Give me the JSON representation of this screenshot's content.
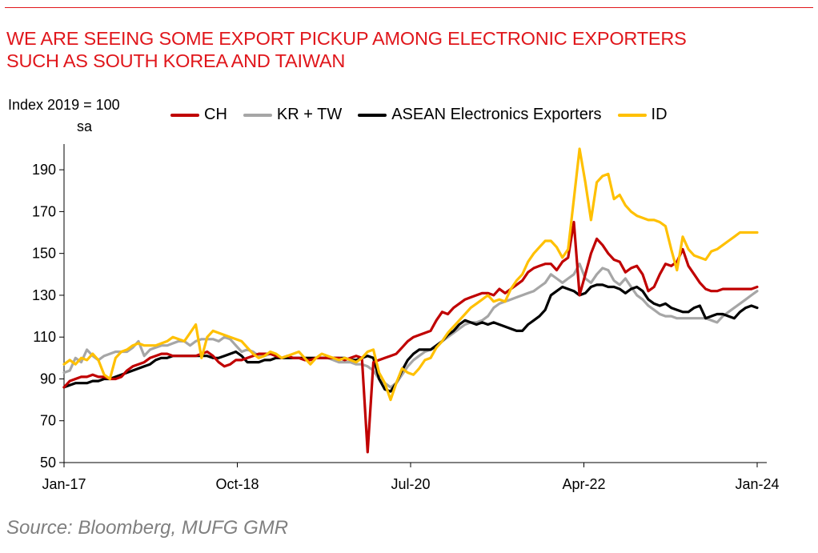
{
  "title_lines": [
    "WE ARE SEEING SOME EXPORT PICKUP AMONG ELECTRONIC EXPORTERS",
    "SUCH AS SOUTH KOREA AND TAIWAN"
  ],
  "source": "Source: Bloomberg, MUFG GMR",
  "chart_data": {
    "type": "line",
    "title": "WE ARE SEEING SOME EXPORT PICKUP AMONG ELECTRONIC EXPORTERS SUCH AS SOUTH KOREA AND TAIWAN",
    "ylabel_lines": [
      "Index 2019 = 100",
      "sa"
    ],
    "xlabel": "",
    "x_start": "Jan-17",
    "x_end": "Jan-24",
    "x_tick_labels": [
      "Jan-17",
      "Oct-18",
      "Jul-20",
      "Apr-22",
      "Jan-24"
    ],
    "y_ticks": [
      50,
      70,
      90,
      110,
      130,
      150,
      170,
      190
    ],
    "ylim": [
      50,
      200
    ],
    "grid": false,
    "legend_position": "top",
    "series": [
      {
        "name": "CH",
        "color": "#c00000",
        "values": [
          86,
          89,
          90,
          91,
          91,
          92,
          91,
          91,
          90,
          90,
          91,
          94,
          96,
          97,
          98,
          100,
          101,
          102,
          102,
          101,
          101,
          101,
          101,
          101,
          102,
          103,
          101,
          98,
          96,
          97,
          99,
          99,
          100,
          101,
          102,
          102,
          102,
          101,
          100,
          101,
          100,
          100,
          99,
          99,
          100,
          100,
          100,
          100,
          100,
          99,
          100,
          101,
          100,
          55,
          98,
          99,
          100,
          101,
          102,
          105,
          108,
          110,
          111,
          112,
          113,
          118,
          122,
          121,
          124,
          126,
          128,
          129,
          130,
          131,
          131,
          130,
          133,
          131,
          133,
          135,
          137,
          141,
          143,
          144,
          145,
          145,
          142,
          146,
          148,
          165,
          130,
          140,
          150,
          157,
          154,
          150,
          147,
          146,
          141,
          143,
          144,
          140,
          132,
          134,
          140,
          145,
          144,
          146,
          152,
          144,
          140,
          136,
          133,
          132,
          132,
          133,
          133,
          133,
          133,
          133,
          133,
          134
        ]
      },
      {
        "name": "KR + TW",
        "color": "#a6a6a6",
        "values": [
          93,
          94,
          100,
          98,
          104,
          101,
          99,
          101,
          102,
          103,
          103,
          103,
          105,
          108,
          101,
          104,
          105,
          106,
          106,
          107,
          108,
          108,
          106,
          108,
          109,
          109,
          109,
          108,
          110,
          109,
          106,
          103,
          104,
          103,
          101,
          101,
          102,
          101,
          100,
          100,
          100,
          100,
          100,
          100,
          100,
          100,
          100,
          99,
          98,
          98,
          98,
          97,
          97,
          96,
          94,
          90,
          88,
          86,
          88,
          92,
          96,
          99,
          101,
          103,
          104,
          105,
          108,
          110,
          112,
          114,
          116,
          117,
          117,
          118,
          120,
          124,
          126,
          127,
          128,
          129,
          130,
          131,
          132,
          134,
          136,
          140,
          138,
          136,
          138,
          140,
          145,
          138,
          136,
          140,
          143,
          142,
          137,
          135,
          138,
          134,
          130,
          128,
          125,
          123,
          121,
          120,
          120,
          119,
          119,
          119,
          119,
          119,
          119,
          118,
          117,
          120,
          122,
          124,
          126,
          128,
          130,
          132
        ]
      },
      {
        "name": "ASEAN Electronics Exporters",
        "color": "#000000",
        "values": [
          86,
          87,
          88,
          88,
          88,
          89,
          89,
          90,
          90,
          91,
          92,
          93,
          94,
          95,
          96,
          97,
          99,
          100,
          100,
          101,
          101,
          101,
          101,
          101,
          101,
          101,
          100,
          100,
          101,
          102,
          103,
          101,
          98,
          98,
          98,
          99,
          99,
          100,
          100,
          100,
          100,
          100,
          100,
          100,
          100,
          100,
          100,
          100,
          100,
          100,
          99,
          99,
          100,
          101,
          100,
          90,
          85,
          84,
          88,
          94,
          99,
          102,
          104,
          104,
          104,
          106,
          108,
          111,
          113,
          116,
          118,
          117,
          116,
          117,
          116,
          117,
          116,
          115,
          114,
          113,
          113,
          116,
          118,
          120,
          123,
          130,
          132,
          134,
          133,
          132,
          130,
          131,
          134,
          135,
          135,
          134,
          134,
          133,
          131,
          133,
          134,
          132,
          128,
          126,
          125,
          126,
          124,
          123,
          122,
          122,
          124,
          125,
          119,
          120,
          121,
          121,
          120,
          119,
          122,
          124,
          125,
          124
        ]
      },
      {
        "name": "ID",
        "color": "#ffc000",
        "values": [
          97,
          99,
          97,
          100,
          99,
          102,
          99,
          92,
          90,
          100,
          103,
          104,
          106,
          107,
          106,
          106,
          106,
          107,
          108,
          110,
          109,
          108,
          112,
          116,
          100,
          110,
          113,
          112,
          111,
          110,
          109,
          108,
          105,
          102,
          100,
          101,
          103,
          102,
          100,
          101,
          102,
          103,
          100,
          97,
          100,
          102,
          101,
          100,
          99,
          100,
          99,
          98,
          100,
          103,
          104,
          93,
          88,
          80,
          88,
          95,
          93,
          92,
          95,
          99,
          100,
          105,
          108,
          112,
          115,
          118,
          121,
          124,
          126,
          128,
          130,
          127,
          128,
          127,
          133,
          137,
          140,
          146,
          150,
          153,
          156,
          156,
          153,
          148,
          152,
          176,
          200,
          184,
          166,
          184,
          187,
          188,
          176,
          178,
          173,
          170,
          168,
          167,
          166,
          166,
          165,
          163,
          152,
          142,
          158,
          152,
          149,
          148,
          147,
          151,
          152,
          154,
          156,
          158,
          160,
          160,
          160,
          160
        ]
      }
    ]
  }
}
